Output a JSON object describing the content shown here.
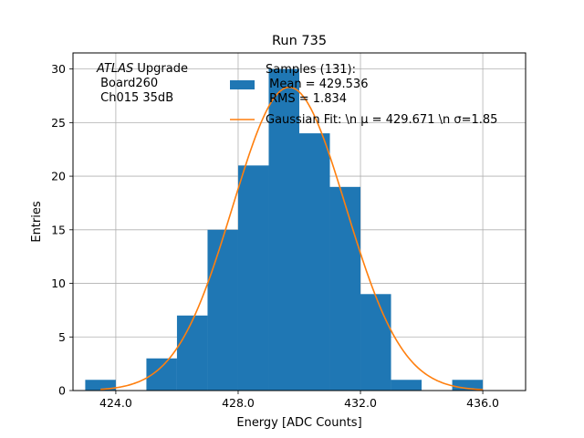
{
  "chart_data": {
    "type": "bar",
    "title": "Run 735",
    "xlabel": "Energy [ADC Counts]",
    "ylabel": "Entries",
    "xlim": [
      422.6,
      437.4
    ],
    "ylim": [
      0,
      31.5
    ],
    "xticks": [
      424,
      428,
      432,
      436
    ],
    "xtick_labels": [
      "424.0",
      "428.0",
      "432.0",
      "436.0"
    ],
    "yticks": [
      0,
      5,
      10,
      15,
      20,
      25,
      30
    ],
    "ytick_labels": [
      "0",
      "5",
      "10",
      "15",
      "20",
      "25",
      "30"
    ],
    "grid": true,
    "legend_position": "top-right",
    "annotation": {
      "italic": "ATLAS",
      "line1": " Upgrade",
      "line2": " Board260",
      "line3": " Ch015 35dB"
    },
    "histogram": {
      "name": "Samples (131):",
      "stats_line1": " Mean = 429.536",
      "stats_line2": " RMS = 1.834",
      "color": "#1f77b4",
      "bin_edges": [
        423,
        424,
        425,
        426,
        427,
        428,
        429,
        430,
        431,
        432,
        433,
        434,
        435,
        436,
        437
      ],
      "counts": [
        1,
        0,
        3,
        7,
        15,
        21,
        30,
        24,
        19,
        9,
        1,
        0,
        1,
        0
      ]
    },
    "fit": {
      "label": "Gaussian Fit: \\n μ = 429.671 \\n σ=1.85",
      "color": "#ff7f0e",
      "mu": 429.671,
      "sigma": 1.85,
      "amplitude": 28.3,
      "x_range": [
        423.5,
        436.0
      ]
    }
  }
}
